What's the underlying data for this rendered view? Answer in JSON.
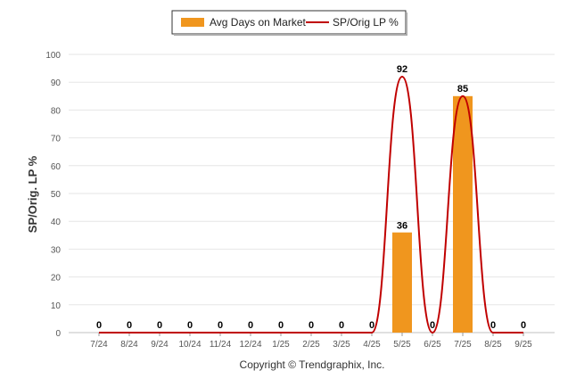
{
  "chart_data": {
    "type": "bar",
    "categories": [
      "7/24",
      "8/24",
      "9/24",
      "10/24",
      "11/24",
      "12/24",
      "1/25",
      "2/25",
      "3/25",
      "4/25",
      "5/25",
      "6/25",
      "7/25",
      "8/25",
      "9/25"
    ],
    "series": [
      {
        "name": "Avg Days on Market",
        "type": "bar",
        "color": "#f0961e",
        "values": [
          0,
          0,
          0,
          0,
          0,
          0,
          0,
          0,
          0,
          0,
          36,
          0,
          85,
          0,
          0
        ]
      },
      {
        "name": "SP/Orig LP %",
        "type": "line",
        "color": "#c00000",
        "values": [
          0,
          0,
          0,
          0,
          0,
          0,
          0,
          0,
          0,
          0,
          92,
          0,
          85,
          0,
          0
        ]
      }
    ],
    "data_labels": [
      "0",
      "0",
      "0",
      "0",
      "0",
      "0",
      "0",
      "0",
      "0",
      "0",
      "92",
      "0",
      "85",
      "0",
      "0"
    ],
    "bar_labels": [
      "",
      "",
      "",
      "",
      "",
      "",
      "",
      "",
      "",
      "",
      "36",
      "",
      "",
      "",
      ""
    ],
    "ylabel": "SP/Orig. LP %",
    "yticks": [
      0,
      10,
      20,
      30,
      40,
      50,
      60,
      70,
      80,
      90,
      100
    ],
    "ylim": [
      0,
      100
    ],
    "grid": true,
    "legend_position": "top-center"
  },
  "footer": {
    "copyright": "Copyright © Trendgraphix, Inc."
  }
}
